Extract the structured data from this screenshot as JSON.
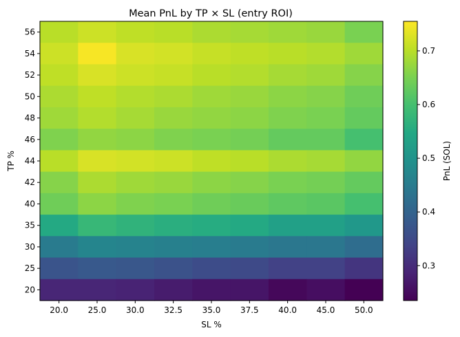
{
  "chart_data": {
    "type": "heatmap",
    "title": "Mean PnL by TP × SL (entry ROI)",
    "xlabel": "SL %",
    "ylabel": "TP %",
    "x_categories": [
      "20.0",
      "25.0",
      "30.0",
      "32.5",
      "35.0",
      "37.5",
      "40.0",
      "45.0",
      "50.0"
    ],
    "y_categories": [
      "56",
      "54",
      "52",
      "50",
      "48",
      "46",
      "44",
      "42",
      "40",
      "35",
      "30",
      "25",
      "20"
    ],
    "values": [
      [
        0.7,
        0.715,
        0.705,
        0.7,
        0.69,
        0.685,
        0.68,
        0.675,
        0.65
      ],
      [
        0.715,
        0.75,
        0.725,
        0.72,
        0.71,
        0.705,
        0.7,
        0.695,
        0.68
      ],
      [
        0.705,
        0.725,
        0.715,
        0.71,
        0.7,
        0.695,
        0.685,
        0.68,
        0.66
      ],
      [
        0.69,
        0.705,
        0.695,
        0.69,
        0.68,
        0.675,
        0.665,
        0.66,
        0.64
      ],
      [
        0.68,
        0.695,
        0.685,
        0.675,
        0.67,
        0.665,
        0.655,
        0.65,
        0.63
      ],
      [
        0.655,
        0.67,
        0.665,
        0.655,
        0.65,
        0.645,
        0.63,
        0.63,
        0.6
      ],
      [
        0.7,
        0.725,
        0.72,
        0.715,
        0.705,
        0.7,
        0.69,
        0.685,
        0.67
      ],
      [
        0.66,
        0.69,
        0.68,
        0.675,
        0.665,
        0.66,
        0.65,
        0.645,
        0.63
      ],
      [
        0.64,
        0.665,
        0.655,
        0.65,
        0.64,
        0.635,
        0.625,
        0.62,
        0.6
      ],
      [
        0.55,
        0.58,
        0.57,
        0.56,
        0.555,
        0.55,
        0.53,
        0.53,
        0.51
      ],
      [
        0.45,
        0.47,
        0.465,
        0.46,
        0.455,
        0.45,
        0.44,
        0.44,
        0.42
      ],
      [
        0.37,
        0.38,
        0.375,
        0.365,
        0.355,
        0.35,
        0.335,
        0.335,
        0.315
      ],
      [
        0.29,
        0.29,
        0.285,
        0.275,
        0.265,
        0.265,
        0.245,
        0.255,
        0.235
      ]
    ],
    "colormap": "viridis",
    "colorbar": {
      "label": "PnL (SOL)",
      "min": 0.235,
      "max": 0.755,
      "ticks": [
        0.3,
        0.4,
        0.5,
        0.6,
        0.7
      ],
      "tick_labels": [
        "0.3",
        "0.4",
        "0.5",
        "0.6",
        "0.7"
      ]
    },
    "grid": false
  }
}
